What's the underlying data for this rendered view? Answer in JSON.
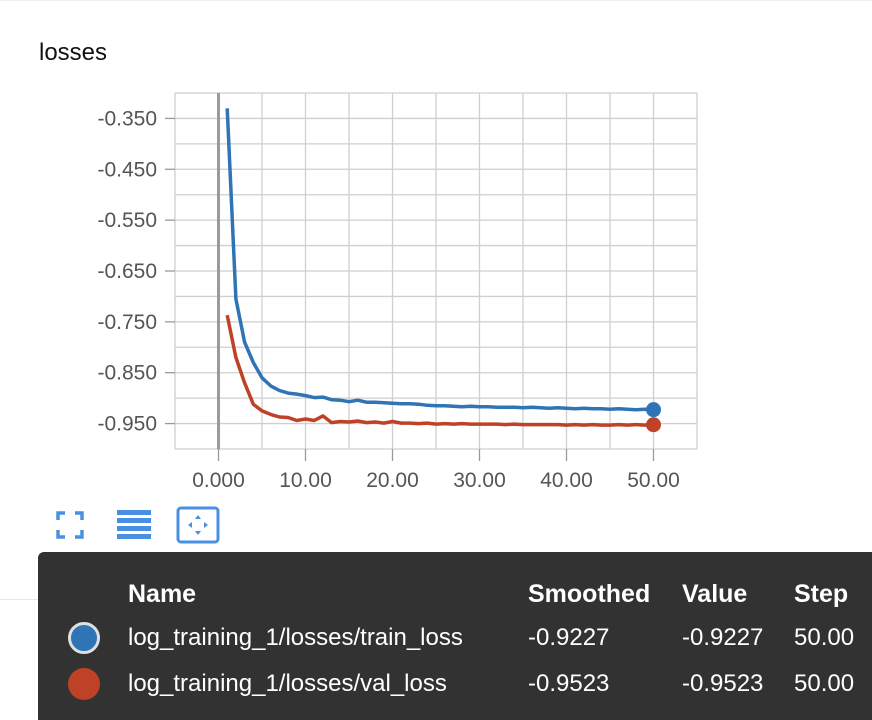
{
  "chart_card": {
    "title": "losses"
  },
  "chart_data": {
    "type": "line",
    "title": "losses",
    "xlabel": "",
    "ylabel": "",
    "xlim": [
      -5,
      55
    ],
    "ylim": [
      -1.0,
      -0.3
    ],
    "x_ticks": [
      "0.000",
      "10.00",
      "20.00",
      "30.00",
      "40.00",
      "50.00"
    ],
    "x_tick_values": [
      0,
      10,
      20,
      30,
      40,
      50
    ],
    "y_ticks": [
      "-0.350",
      "-0.450",
      "-0.550",
      "-0.650",
      "-0.750",
      "-0.850",
      "-0.950"
    ],
    "y_tick_values": [
      -0.35,
      -0.45,
      -0.55,
      -0.65,
      -0.75,
      -0.85,
      -0.95
    ],
    "grid": true,
    "series": [
      {
        "name": "log_training_1/losses/train_loss",
        "color": "#2f74b5",
        "x": [
          1,
          2,
          3,
          4,
          5,
          6,
          7,
          8,
          9,
          10,
          11,
          12,
          13,
          14,
          15,
          16,
          17,
          18,
          19,
          20,
          21,
          22,
          23,
          24,
          25,
          26,
          27,
          28,
          29,
          30,
          31,
          32,
          33,
          34,
          35,
          36,
          37,
          38,
          39,
          40,
          41,
          42,
          43,
          44,
          45,
          46,
          47,
          48,
          49,
          50
        ],
        "values": [
          -0.33,
          -0.705,
          -0.79,
          -0.83,
          -0.86,
          -0.876,
          -0.885,
          -0.89,
          -0.892,
          -0.895,
          -0.899,
          -0.898,
          -0.903,
          -0.904,
          -0.907,
          -0.904,
          -0.908,
          -0.908,
          -0.909,
          -0.91,
          -0.911,
          -0.911,
          -0.912,
          -0.914,
          -0.915,
          -0.915,
          -0.916,
          -0.917,
          -0.916,
          -0.917,
          -0.917,
          -0.918,
          -0.918,
          -0.918,
          -0.919,
          -0.918,
          -0.919,
          -0.92,
          -0.919,
          -0.92,
          -0.921,
          -0.92,
          -0.921,
          -0.921,
          -0.922,
          -0.921,
          -0.922,
          -0.923,
          -0.922,
          -0.9227
        ]
      },
      {
        "name": "log_training_1/losses/val_loss",
        "color": "#bf4227",
        "x": [
          1,
          2,
          3,
          4,
          5,
          6,
          7,
          8,
          9,
          10,
          11,
          12,
          13,
          14,
          15,
          16,
          17,
          18,
          19,
          20,
          21,
          22,
          23,
          24,
          25,
          26,
          27,
          28,
          29,
          30,
          31,
          32,
          33,
          34,
          35,
          36,
          37,
          38,
          39,
          40,
          41,
          42,
          43,
          44,
          45,
          46,
          47,
          48,
          49,
          50
        ],
        "values": [
          -0.737,
          -0.82,
          -0.87,
          -0.912,
          -0.925,
          -0.932,
          -0.937,
          -0.938,
          -0.944,
          -0.941,
          -0.944,
          -0.935,
          -0.948,
          -0.946,
          -0.947,
          -0.945,
          -0.948,
          -0.947,
          -0.949,
          -0.946,
          -0.949,
          -0.949,
          -0.95,
          -0.949,
          -0.951,
          -0.95,
          -0.951,
          -0.95,
          -0.951,
          -0.951,
          -0.951,
          -0.951,
          -0.952,
          -0.951,
          -0.952,
          -0.952,
          -0.952,
          -0.952,
          -0.952,
          -0.953,
          -0.952,
          -0.953,
          -0.952,
          -0.953,
          -0.953,
          -0.952,
          -0.953,
          -0.952,
          -0.953,
          -0.9523
        ]
      }
    ]
  },
  "toolbar": {
    "icons": [
      "fullscreen-icon",
      "list-icon",
      "fit-domain-icon"
    ]
  },
  "tooltip": {
    "headers": {
      "name": "Name",
      "smoothed": "Smoothed",
      "value": "Value",
      "step": "Step"
    },
    "rows": [
      {
        "name": "log_training_1/losses/train_loss",
        "smoothed": "-0.9227",
        "value": "-0.9227",
        "step": "50.00",
        "color": "#2f74b5"
      },
      {
        "name": "log_training_1/losses/val_loss",
        "smoothed": "-0.9523",
        "value": "-0.9523",
        "step": "50.00",
        "color": "#bf4227"
      }
    ]
  },
  "colors": {
    "train": "#2f74b5",
    "val": "#bf4227",
    "tooltip_bg": "#323232",
    "accent": "#4285f4"
  }
}
